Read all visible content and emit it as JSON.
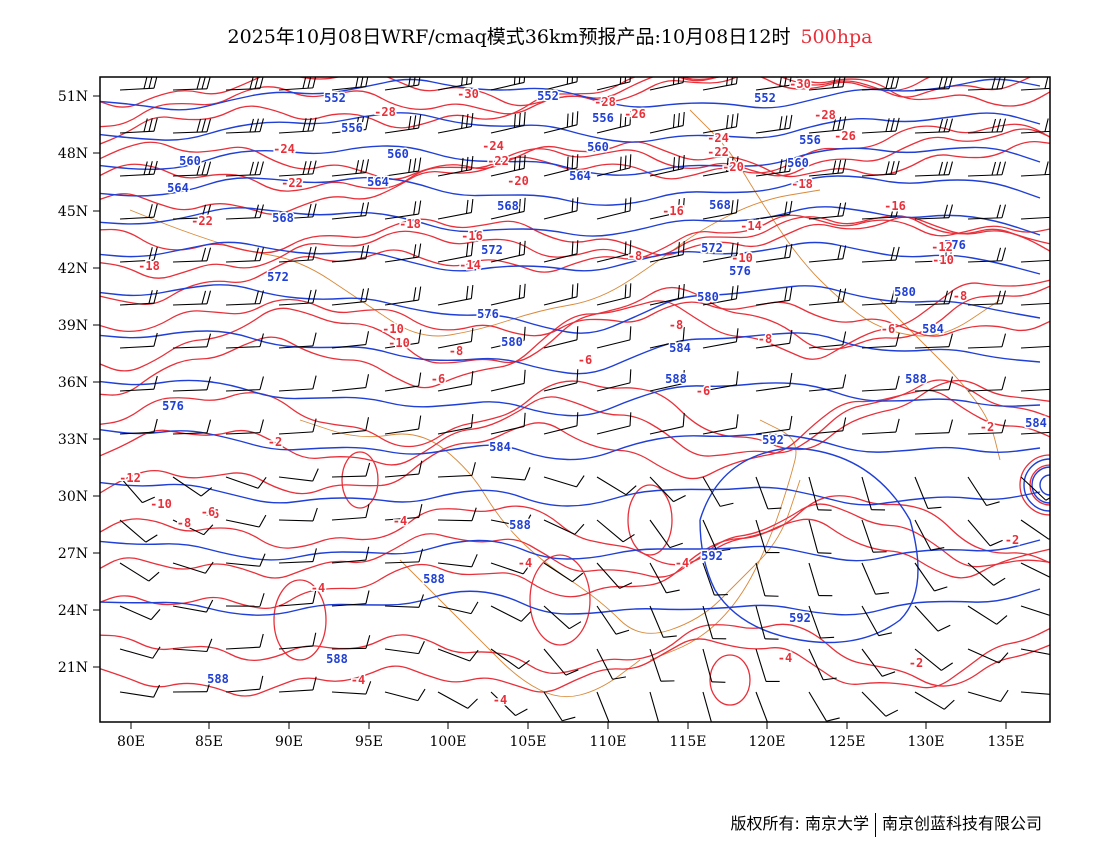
{
  "title": {
    "main": "2025年10月08日WRF/cmaq模式36km预报产品:10月08日12时",
    "level": "500hpa",
    "level_color": "#e8303a"
  },
  "axes": {
    "lat_labels": [
      "51N",
      "48N",
      "45N",
      "42N",
      "39N",
      "36N",
      "33N",
      "30N",
      "27N",
      "24N",
      "21N"
    ],
    "lon_labels": [
      "80E",
      "85E",
      "90E",
      "95E",
      "100E",
      "105E",
      "110E",
      "115E",
      "120E",
      "125E",
      "130E",
      "135E"
    ]
  },
  "colors": {
    "height": "#1f3fd6",
    "temperature": "#e8303a",
    "border": "#d98a3a",
    "wind": "#000000"
  },
  "contours": {
    "height_labels": [
      "552",
      "552",
      "552",
      "556",
      "556",
      "556",
      "560",
      "560",
      "560",
      "560",
      "564",
      "564",
      "564",
      "568",
      "568",
      "568",
      "572",
      "572",
      "572",
      "576",
      "576",
      "576",
      "576",
      "580",
      "580",
      "580",
      "584",
      "584",
      "584",
      "584",
      "588",
      "588",
      "588",
      "588",
      "588",
      "588",
      "592",
      "592",
      "592"
    ],
    "temperature_labels": [
      "-30",
      "-30",
      "-28",
      "-28",
      "-28",
      "-26",
      "-26",
      "-24",
      "-24",
      "-24",
      "-22",
      "-22",
      "-22",
      "-22",
      "-20",
      "-20",
      "-18",
      "-18",
      "-18",
      "-16",
      "-16",
      "-16",
      "-14",
      "-14",
      "-12",
      "-10",
      "-10",
      "-10",
      "-10",
      "-8",
      "-8",
      "-8",
      "-8",
      "-8",
      "-6",
      "-6",
      "-6",
      "-6",
      "-6",
      "-4",
      "-4",
      "-4",
      "-4",
      "-4",
      "-4",
      "-4",
      "-2",
      "-2",
      "-2",
      "-2",
      "-12",
      "-10",
      "-8",
      "-6"
    ]
  },
  "footer": {
    "copyright": "版权所有: 南京大学",
    "company": "南京创蓝科技有限公司"
  }
}
